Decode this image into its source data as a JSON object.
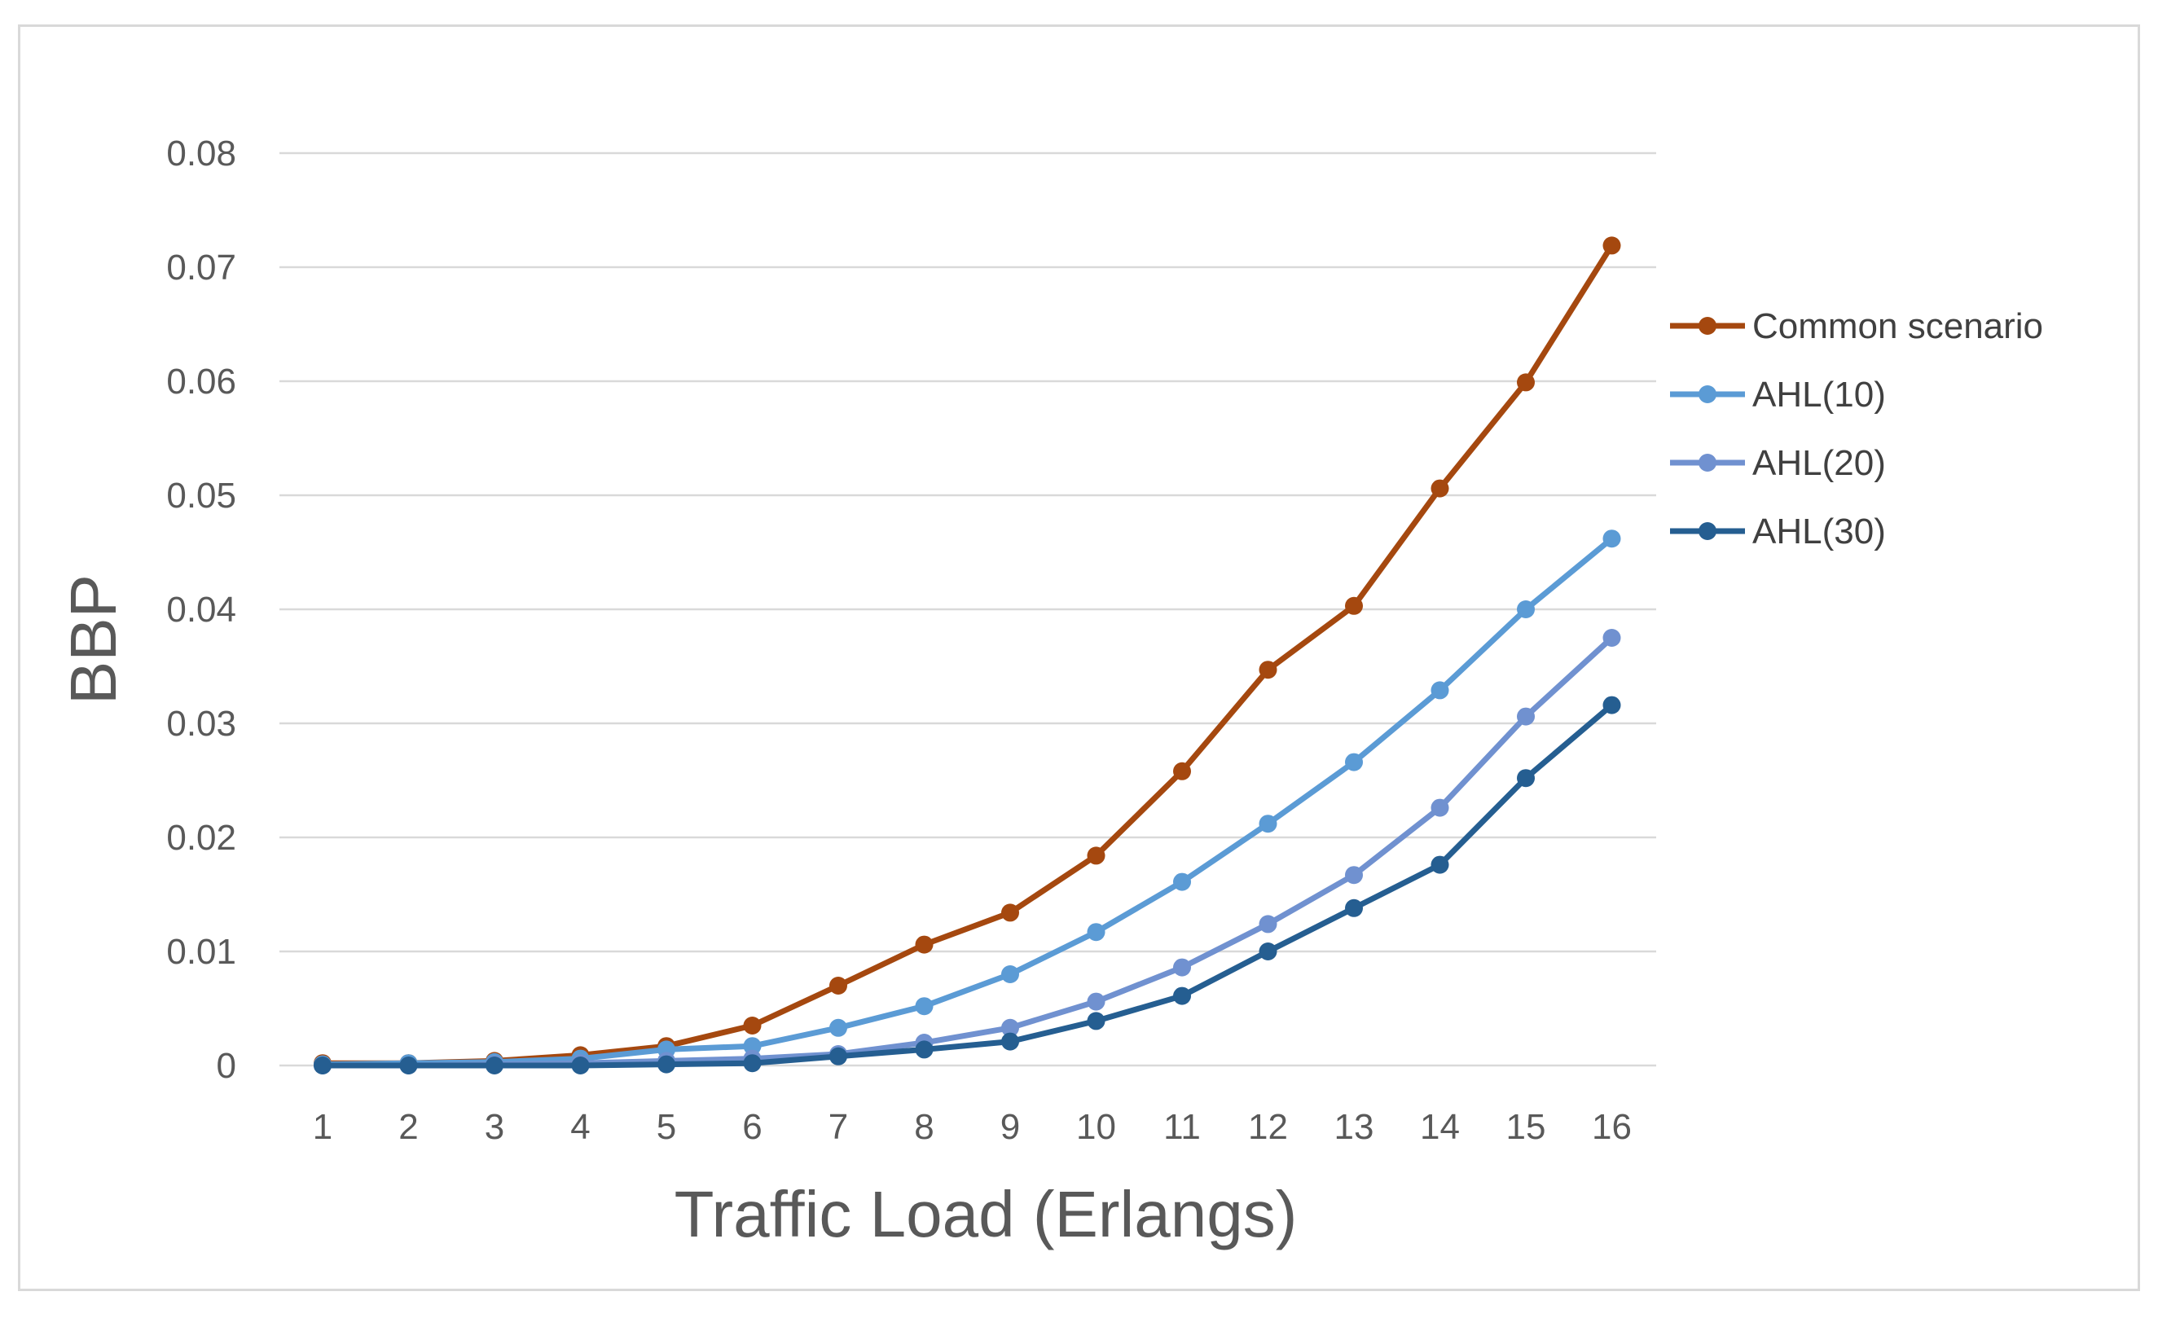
{
  "chart_data": {
    "type": "line",
    "title": "",
    "xlabel": "Traffic Load (Erlangs)",
    "ylabel": "BBP",
    "categories": [
      "1",
      "2",
      "3",
      "4",
      "5",
      "6",
      "7",
      "8",
      "9",
      "10",
      "11",
      "12",
      "13",
      "14",
      "15",
      "16"
    ],
    "ylim": [
      0,
      0.08
    ],
    "yticks": [
      0,
      0.01,
      0.02,
      0.03,
      0.04,
      0.05,
      0.06,
      0.07,
      0.08
    ],
    "ytick_labels": [
      "0",
      "0.01",
      "0.02",
      "0.03",
      "0.04",
      "0.05",
      "0.06",
      "0.07",
      "0.08"
    ],
    "grid": true,
    "legend_position": "right",
    "series": [
      {
        "name": "Common scenario",
        "color": "#A5480F",
        "values": [
          0.0002,
          0.0002,
          0.0004,
          0.0009,
          0.0017,
          0.0035,
          0.007,
          0.0106,
          0.0134,
          0.0184,
          0.0258,
          0.0347,
          0.0403,
          0.0506,
          0.0599,
          0.0719
        ]
      },
      {
        "name": "AHL(10)",
        "color": "#5B9BD5",
        "values": [
          0.0001,
          0.0002,
          0.0003,
          0.0006,
          0.0014,
          0.0017,
          0.0033,
          0.0052,
          0.008,
          0.0117,
          0.0161,
          0.0212,
          0.0266,
          0.0329,
          0.04,
          0.0462
        ]
      },
      {
        "name": "AHL(20)",
        "color": "#7091D0",
        "values": [
          0.0,
          0.0,
          0.0001,
          0.0002,
          0.0004,
          0.0006,
          0.001,
          0.002,
          0.0033,
          0.0056,
          0.0086,
          0.0124,
          0.0167,
          0.0226,
          0.0306,
          0.0375
        ]
      },
      {
        "name": "AHL(30)",
        "color": "#255E91",
        "values": [
          0.0,
          0.0,
          0.0,
          0.0,
          0.0001,
          0.0002,
          0.0008,
          0.0014,
          0.0021,
          0.0039,
          0.0061,
          0.01,
          0.0138,
          0.0176,
          0.0252,
          0.0316
        ]
      }
    ]
  }
}
